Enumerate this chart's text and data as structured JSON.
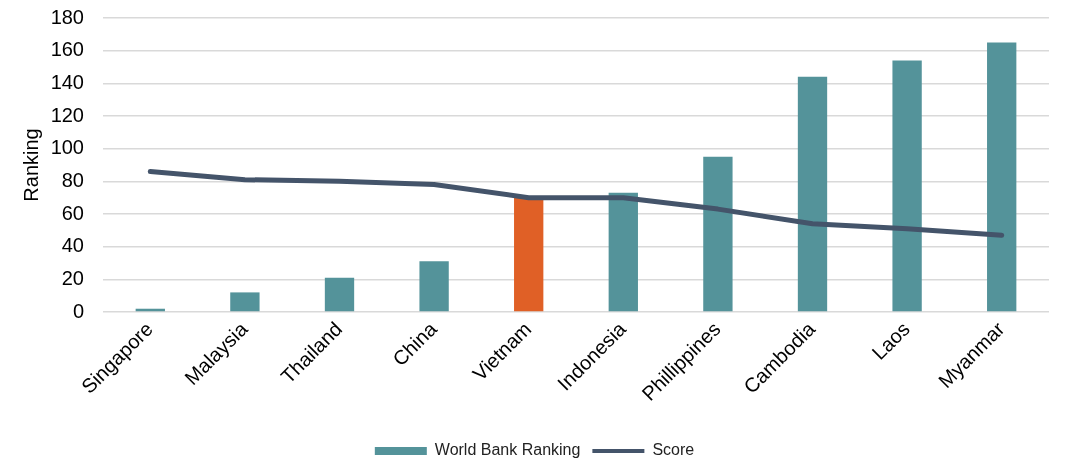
{
  "chart_data": {
    "type": "bar",
    "ylabel": "Ranking",
    "categories": [
      "Singapore",
      "Malaysia",
      "Thailand",
      "China",
      "Vietnam",
      "Indonesia",
      "Phillippines",
      "Cambodia",
      "Laos",
      "Myanmar"
    ],
    "series": [
      {
        "name": "World Bank Ranking",
        "color": "#54939a",
        "colors": [
          "#54939a",
          "#54939a",
          "#54939a",
          "#54939a",
          "#e06026",
          "#54939a",
          "#54939a",
          "#54939a",
          "#54939a",
          "#54939a"
        ],
        "values": [
          2,
          12,
          21,
          31,
          70,
          73,
          95,
          144,
          154,
          165
        ]
      },
      {
        "name": "Score",
        "type": "line",
        "color": "#44546a",
        "marker": "none",
        "values": [
          86,
          81,
          80,
          78,
          70,
          70,
          63,
          54,
          51,
          47
        ]
      }
    ],
    "ylim": [
      0,
      180
    ],
    "yticks": [
      0,
      20,
      40,
      60,
      80,
      100,
      120,
      140,
      160,
      180
    ],
    "grid": "y",
    "legend": "bottom"
  }
}
